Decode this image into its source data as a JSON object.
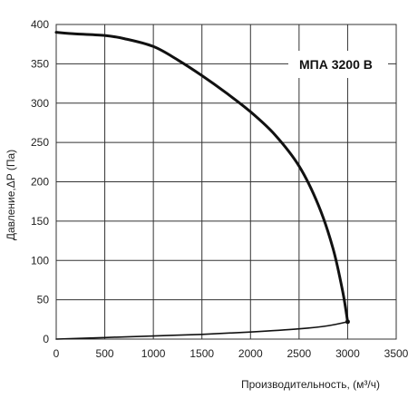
{
  "chart_data": {
    "type": "line",
    "title": "МПА 3200 В",
    "xlabel": "Производительность, (м³/ч)",
    "ylabel": "Давление,ΔP (Па)",
    "xlim": [
      0,
      3500
    ],
    "ylim": [
      0,
      400
    ],
    "x_ticks": [
      0,
      500,
      1000,
      1500,
      2000,
      2500,
      3000,
      3500
    ],
    "y_ticks": [
      0,
      50,
      100,
      150,
      200,
      250,
      300,
      350,
      400
    ],
    "grid": true,
    "series": [
      {
        "values": [
          [
            0,
            390
          ],
          [
            200,
            388
          ],
          [
            500,
            386
          ],
          [
            700,
            382
          ],
          [
            1000,
            372
          ],
          [
            1250,
            355
          ],
          [
            1500,
            335
          ],
          [
            1750,
            313
          ],
          [
            2000,
            289
          ],
          [
            2250,
            260
          ],
          [
            2500,
            220
          ],
          [
            2700,
            170
          ],
          [
            2850,
            115
          ],
          [
            2950,
            60
          ],
          [
            3000,
            22
          ]
        ]
      },
      {
        "values": [
          [
            0,
            0
          ],
          [
            500,
            2
          ],
          [
            1000,
            4
          ],
          [
            1500,
            6
          ],
          [
            2000,
            9
          ],
          [
            2500,
            13
          ],
          [
            2800,
            17
          ],
          [
            3000,
            22
          ]
        ]
      }
    ],
    "colors": {
      "line": "#111111",
      "grid": "#333333",
      "background": "#ffffff"
    }
  }
}
